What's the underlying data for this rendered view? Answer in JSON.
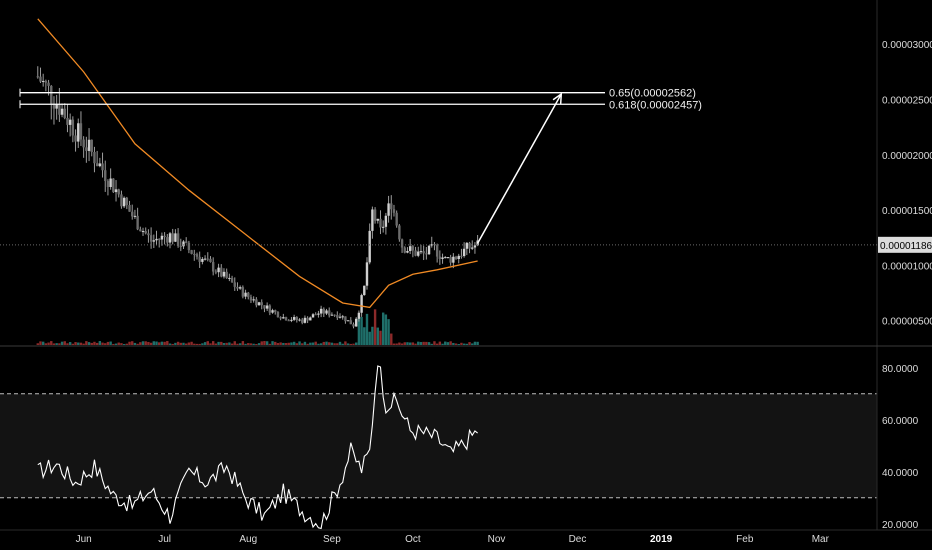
{
  "colors": {
    "background": "#000000",
    "candle": "#9e9e9e",
    "moving_average": "#f08a24",
    "rsi": "#ffffff",
    "rsi_band": "#131313",
    "volume_up": "#1f6f6a",
    "volume_down": "#8c2a2a",
    "annotation": "#ffffff"
  },
  "chart_data": [
    {
      "type": "candlestick",
      "pane": "price",
      "y_axis_ticks": [
        "0.00003000",
        "0.00002500",
        "0.00002000",
        "0.00001500",
        "0.00001000",
        "0.00000500"
      ],
      "ylim": [
        2.8e-06,
        3.4e-05
      ],
      "current_price_label": "0.00001186",
      "current_price": 1.186e-05,
      "x_axis_months": [
        "Jun",
        "Jul",
        "Aug",
        "Sep",
        "Oct",
        "Nov",
        "Dec",
        "2019",
        "Feb",
        "Mar"
      ],
      "price_series": {
        "dates": [
          "2018-05-15",
          "2018-05-22",
          "2018-05-29",
          "2018-06-05",
          "2018-06-12",
          "2018-06-19",
          "2018-06-26",
          "2018-07-03",
          "2018-07-10",
          "2018-07-17",
          "2018-07-24",
          "2018-07-31",
          "2018-08-07",
          "2018-08-14",
          "2018-08-21",
          "2018-08-28",
          "2018-09-04",
          "2018-09-09",
          "2018-09-11",
          "2018-09-13",
          "2018-09-16",
          "2018-09-19",
          "2018-09-23",
          "2018-09-27",
          "2018-10-01",
          "2018-10-05",
          "2018-10-09",
          "2018-10-13",
          "2018-10-17",
          "2018-10-21",
          "2018-10-25"
        ],
        "close": [
          2.71e-05,
          2.48e-05,
          2.22e-05,
          1.98e-05,
          1.72e-05,
          1.45e-05,
          1.22e-05,
          1.27e-05,
          1.14e-05,
          1.02e-05,
          8.8e-06,
          7.3e-06,
          6.3e-06,
          5.3e-06,
          5e-06,
          5.8e-06,
          5.5e-06,
          4.6e-06,
          6e-06,
          8e-06,
          1.48e-05,
          1.3e-05,
          1.58e-05,
          1.18e-05,
          1.12e-05,
          1.1e-05,
          1.15e-05,
          1.05e-05,
          1.08e-05,
          1.15e-05,
          1.19e-05
        ]
      },
      "moving_average": {
        "dates": [
          "2018-05-15",
          "2018-06-01",
          "2018-06-20",
          "2018-07-10",
          "2018-07-31",
          "2018-08-20",
          "2018-09-05",
          "2018-09-15",
          "2018-09-22",
          "2018-10-01",
          "2018-10-10",
          "2018-10-25"
        ],
        "values": [
          3.23e-05,
          2.75e-05,
          2.1e-05,
          1.68e-05,
          1.28e-05,
          9e-06,
          6.6e-06,
          6.2e-06,
          8.2e-06,
          9.2e-06,
          9.6e-06,
          1.04e-05
        ]
      },
      "fibonacci_levels": [
        {
          "label": "0.65(0.00002562)",
          "value": 2.562e-05
        },
        {
          "label": "0.618(0.00002457)",
          "value": 2.457e-05
        }
      ],
      "annotation_arrow": {
        "from_date": "2018-10-25",
        "from_value": 1.2e-05,
        "to_date": "2018-11-25",
        "to_value": 2.55e-05
      }
    },
    {
      "type": "line",
      "pane": "rsi",
      "y_axis_ticks": [
        "80.0000",
        "60.0000",
        "40.0000",
        "20.0000"
      ],
      "ylim": [
        18,
        88
      ],
      "bands": [
        70,
        30
      ],
      "series": {
        "dates": [
          "2018-05-15",
          "2018-05-22",
          "2018-05-29",
          "2018-06-05",
          "2018-06-12",
          "2018-06-19",
          "2018-06-26",
          "2018-07-03",
          "2018-07-10",
          "2018-07-17",
          "2018-07-24",
          "2018-07-31",
          "2018-08-07",
          "2018-08-14",
          "2018-08-21",
          "2018-08-28",
          "2018-09-04",
          "2018-09-08",
          "2018-09-12",
          "2018-09-15",
          "2018-09-18",
          "2018-09-21",
          "2018-09-25",
          "2018-09-30",
          "2018-10-05",
          "2018-10-10",
          "2018-10-15",
          "2018-10-20",
          "2018-10-25"
        ],
        "values": [
          40,
          43,
          36,
          42,
          31,
          27,
          33,
          23,
          40,
          36,
          42,
          30,
          23,
          32,
          25,
          20,
          36,
          48,
          41,
          48,
          84,
          66,
          67,
          56,
          55,
          53,
          47,
          51,
          56
        ]
      }
    }
  ]
}
